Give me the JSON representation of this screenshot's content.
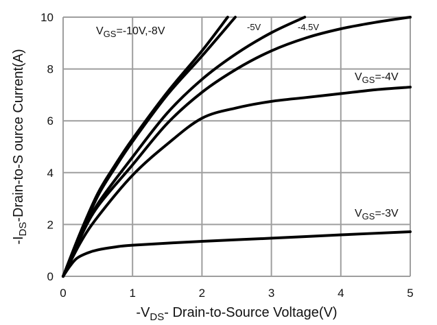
{
  "chart_data": {
    "type": "line",
    "xlabel": {
      "prefix": "-V",
      "sub": "DS",
      "suffix": "- Drain-to-Source Voltage(V)"
    },
    "ylabel": {
      "prefix": "-I",
      "sub": "DS",
      "suffix": "-Drain-to-S ource Current(A)"
    },
    "xlim": [
      0,
      5
    ],
    "ylim": [
      0,
      10
    ],
    "xticks": [
      "0",
      "1",
      "2",
      "3",
      "4",
      "5"
    ],
    "yticks": [
      "0",
      "2",
      "4",
      "6",
      "8",
      "10"
    ],
    "grid": true,
    "colors": {
      "grid": "#9e9e9e",
      "line": "#000000"
    },
    "series": [
      {
        "vgs": "-10V",
        "points": [
          [
            0,
            0
          ],
          [
            0.25,
            1.7
          ],
          [
            0.5,
            3.2
          ],
          [
            0.75,
            4.3
          ],
          [
            1,
            5.3
          ],
          [
            1.5,
            7.1
          ],
          [
            2,
            8.7
          ],
          [
            2.37,
            10
          ]
        ]
      },
      {
        "vgs": "-8V",
        "points": [
          [
            0,
            0
          ],
          [
            0.25,
            1.6
          ],
          [
            0.5,
            3.1
          ],
          [
            0.75,
            4.2
          ],
          [
            1,
            5.2
          ],
          [
            1.5,
            7.0
          ],
          [
            2,
            8.5
          ],
          [
            2.48,
            10
          ]
        ]
      },
      {
        "vgs": "-5V",
        "points": [
          [
            0,
            0
          ],
          [
            0.25,
            1.5
          ],
          [
            0.5,
            2.8
          ],
          [
            1,
            4.6
          ],
          [
            1.5,
            6.3
          ],
          [
            2,
            7.6
          ],
          [
            2.5,
            8.6
          ],
          [
            3,
            9.4
          ],
          [
            3.48,
            10
          ]
        ]
      },
      {
        "vgs": "-4.5V",
        "points": [
          [
            0,
            0
          ],
          [
            0.25,
            1.5
          ],
          [
            0.5,
            2.7
          ],
          [
            1,
            4.3
          ],
          [
            1.5,
            5.9
          ],
          [
            2,
            7.1
          ],
          [
            2.5,
            8.0
          ],
          [
            3,
            8.7
          ],
          [
            3.5,
            9.2
          ],
          [
            4,
            9.55
          ],
          [
            4.5,
            9.8
          ],
          [
            5,
            10
          ]
        ]
      },
      {
        "vgs": "-4V",
        "points": [
          [
            0,
            0
          ],
          [
            0.25,
            1.3
          ],
          [
            0.5,
            2.3
          ],
          [
            1,
            3.9
          ],
          [
            1.5,
            5.1
          ],
          [
            2,
            6.1
          ],
          [
            2.5,
            6.5
          ],
          [
            3,
            6.75
          ],
          [
            3.5,
            6.9
          ],
          [
            4,
            7.05
          ],
          [
            4.5,
            7.2
          ],
          [
            5,
            7.3
          ]
        ]
      },
      {
        "vgs": "-3V",
        "points": [
          [
            0,
            0
          ],
          [
            0.1,
            0.4
          ],
          [
            0.2,
            0.7
          ],
          [
            0.35,
            0.9
          ],
          [
            0.5,
            1.02
          ],
          [
            0.75,
            1.13
          ],
          [
            1,
            1.2
          ],
          [
            2,
            1.35
          ],
          [
            3,
            1.47
          ],
          [
            4,
            1.6
          ],
          [
            5,
            1.72
          ]
        ]
      }
    ],
    "annotations": [
      {
        "prefix": "V",
        "sub": "GS",
        "suffix": "=-10V,-8V"
      },
      {
        "prefix": "",
        "sub": "",
        "suffix": "-5V"
      },
      {
        "prefix": "",
        "sub": "",
        "suffix": "-4.5V"
      },
      {
        "prefix": "V",
        "sub": "GS",
        "suffix": "=-4V"
      },
      {
        "prefix": "V",
        "sub": "GS",
        "suffix": "=-3V"
      }
    ]
  }
}
